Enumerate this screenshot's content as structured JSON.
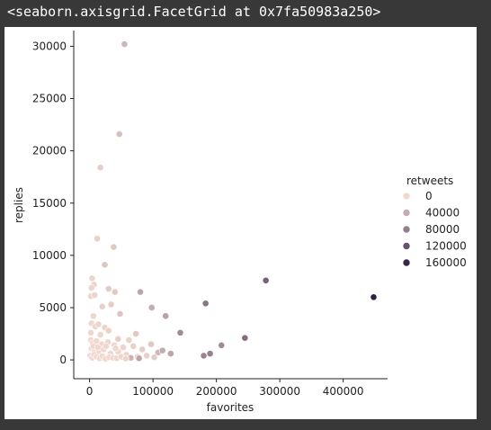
{
  "output": {
    "repr": "<seaborn.axisgrid.FacetGrid at 0x7fa50983a250>"
  },
  "chart_data": {
    "type": "scatter",
    "xlabel": "favorites",
    "ylabel": "replies",
    "xlim": [
      -25000,
      470000
    ],
    "ylim": [
      -1800,
      31500
    ],
    "xticks": [
      0,
      100000,
      200000,
      300000,
      400000
    ],
    "yticks": [
      0,
      5000,
      10000,
      15000,
      20000,
      25000,
      30000
    ],
    "grid": false,
    "legend": {
      "title": "retweets",
      "placement": "right",
      "entries": [
        {
          "label": "0",
          "value": 0
        },
        {
          "label": "40000",
          "value": 40000
        },
        {
          "label": "80000",
          "value": 80000
        },
        {
          "label": "120000",
          "value": 120000
        },
        {
          "label": "160000",
          "value": 160000
        }
      ]
    },
    "hue_range": [
      0,
      170000
    ],
    "colors": {
      "low": "#f2d9d0",
      "high": "#2b1a42"
    },
    "points": [
      {
        "x": 55000,
        "y": 30200,
        "hue": 30000
      },
      {
        "x": 47000,
        "y": 21600,
        "hue": 22000
      },
      {
        "x": 17000,
        "y": 18400,
        "hue": 10000
      },
      {
        "x": 12000,
        "y": 11600,
        "hue": 8000
      },
      {
        "x": 38000,
        "y": 10800,
        "hue": 15000
      },
      {
        "x": 24000,
        "y": 9100,
        "hue": 18000
      },
      {
        "x": 4000,
        "y": 7800,
        "hue": 5000
      },
      {
        "x": 7000,
        "y": 7200,
        "hue": 6000
      },
      {
        "x": 3000,
        "y": 6900,
        "hue": 5000
      },
      {
        "x": 2000,
        "y": 6100,
        "hue": 4000
      },
      {
        "x": 8000,
        "y": 6200,
        "hue": 4000
      },
      {
        "x": 30000,
        "y": 6800,
        "hue": 12000
      },
      {
        "x": 40000,
        "y": 6500,
        "hue": 14000
      },
      {
        "x": 80000,
        "y": 6500,
        "hue": 45000
      },
      {
        "x": 20000,
        "y": 5100,
        "hue": 8000
      },
      {
        "x": 34000,
        "y": 5300,
        "hue": 10000
      },
      {
        "x": 98000,
        "y": 5000,
        "hue": 40000
      },
      {
        "x": 6000,
        "y": 4200,
        "hue": 3000
      },
      {
        "x": 48000,
        "y": 4400,
        "hue": 18000
      },
      {
        "x": 120000,
        "y": 4200,
        "hue": 50000
      },
      {
        "x": 183000,
        "y": 5400,
        "hue": 90000
      },
      {
        "x": 278000,
        "y": 7600,
        "hue": 105000
      },
      {
        "x": 448000,
        "y": 6000,
        "hue": 165000
      },
      {
        "x": 3000,
        "y": 3500,
        "hue": 2000
      },
      {
        "x": 9000,
        "y": 3200,
        "hue": 3000
      },
      {
        "x": 14000,
        "y": 3400,
        "hue": 4000
      },
      {
        "x": 24000,
        "y": 3100,
        "hue": 5000
      },
      {
        "x": 2000,
        "y": 2600,
        "hue": 2000
      },
      {
        "x": 17000,
        "y": 2400,
        "hue": 3000
      },
      {
        "x": 30000,
        "y": 2800,
        "hue": 6000
      },
      {
        "x": 45000,
        "y": 2000,
        "hue": 9000
      },
      {
        "x": 73000,
        "y": 2500,
        "hue": 15000
      },
      {
        "x": 143000,
        "y": 2600,
        "hue": 70000
      },
      {
        "x": 245000,
        "y": 2100,
        "hue": 95000
      },
      {
        "x": 2000,
        "y": 1900,
        "hue": 1000
      },
      {
        "x": 5000,
        "y": 1600,
        "hue": 1000
      },
      {
        "x": 11000,
        "y": 1800,
        "hue": 2000
      },
      {
        "x": 19000,
        "y": 1500,
        "hue": 2000
      },
      {
        "x": 29000,
        "y": 1700,
        "hue": 3000
      },
      {
        "x": 39000,
        "y": 1400,
        "hue": 4000
      },
      {
        "x": 53000,
        "y": 1200,
        "hue": 5000
      },
      {
        "x": 62000,
        "y": 1900,
        "hue": 7000
      },
      {
        "x": 69000,
        "y": 1300,
        "hue": 8000
      },
      {
        "x": 83000,
        "y": 1000,
        "hue": 10000
      },
      {
        "x": 97000,
        "y": 1500,
        "hue": 15000
      },
      {
        "x": 108000,
        "y": 700,
        "hue": 30000
      },
      {
        "x": 115000,
        "y": 900,
        "hue": 40000
      },
      {
        "x": 128000,
        "y": 600,
        "hue": 45000
      },
      {
        "x": 208000,
        "y": 1400,
        "hue": 70000
      },
      {
        "x": 180000,
        "y": 400,
        "hue": 75000
      },
      {
        "x": 190000,
        "y": 600,
        "hue": 80000
      },
      {
        "x": 3000,
        "y": 1100,
        "hue": 1000
      },
      {
        "x": 8000,
        "y": 900,
        "hue": 1000
      },
      {
        "x": 14000,
        "y": 700,
        "hue": 1000
      },
      {
        "x": 22000,
        "y": 1000,
        "hue": 2000
      },
      {
        "x": 33000,
        "y": 600,
        "hue": 2000
      },
      {
        "x": 45000,
        "y": 800,
        "hue": 3000
      },
      {
        "x": 58000,
        "y": 500,
        "hue": 4000
      },
      {
        "x": 76000,
        "y": 300,
        "hue": 6000
      },
      {
        "x": 90000,
        "y": 400,
        "hue": 9000
      },
      {
        "x": 102000,
        "y": 250,
        "hue": 12000
      },
      {
        "x": 65000,
        "y": 200,
        "hue": 32000
      },
      {
        "x": 78000,
        "y": 150,
        "hue": 45000
      },
      {
        "x": 1000,
        "y": 400,
        "hue": 500
      },
      {
        "x": 4000,
        "y": 200,
        "hue": 500
      },
      {
        "x": 7000,
        "y": 500,
        "hue": 500
      },
      {
        "x": 11000,
        "y": 300,
        "hue": 800
      },
      {
        "x": 16000,
        "y": 150,
        "hue": 800
      },
      {
        "x": 20000,
        "y": 350,
        "hue": 1000
      },
      {
        "x": 25000,
        "y": 100,
        "hue": 1000
      },
      {
        "x": 31000,
        "y": 250,
        "hue": 1500
      },
      {
        "x": 37000,
        "y": 200,
        "hue": 1500
      },
      {
        "x": 43000,
        "y": 150,
        "hue": 2000
      },
      {
        "x": 50000,
        "y": 300,
        "hue": 2000
      },
      {
        "x": 57000,
        "y": 120,
        "hue": 3000
      },
      {
        "x": 6000,
        "y": 1300,
        "hue": 800
      },
      {
        "x": 13000,
        "y": 1200,
        "hue": 1200
      },
      {
        "x": 26000,
        "y": 1300,
        "hue": 1800
      },
      {
        "x": 41000,
        "y": 1100,
        "hue": 2500
      }
    ]
  }
}
